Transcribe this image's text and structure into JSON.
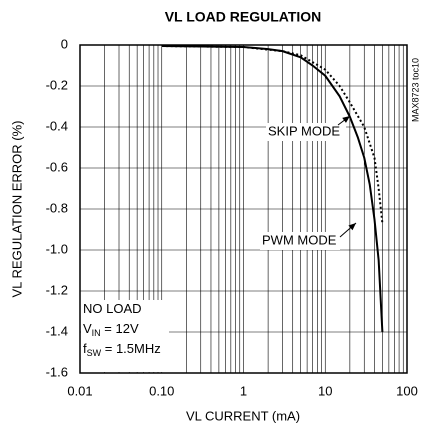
{
  "chart_data": {
    "type": "line",
    "title": "VL LOAD REGULATION",
    "x_label": "VL CURRENT (mA)",
    "y_label": "VL REGULATION ERROR (%)",
    "side_note": "MAX8723 toc10",
    "log_x": true,
    "grid": true,
    "xlim": [
      0.01,
      100
    ],
    "xticks": [
      0.01,
      {
        "value": 0.1,
        "label": "0.10"
      },
      1,
      10,
      100
    ],
    "ylim": [
      -1.6,
      0
    ],
    "yticks": [
      0,
      -0.2,
      -0.4,
      -0.6,
      -0.8,
      {
        "value": -1,
        "label": "-1.0"
      },
      -1.2,
      -1.4,
      -1.6
    ],
    "series": [
      {
        "name": "SKIP MODE",
        "color": "#000000",
        "line_style": "solid",
        "x": [
          0.1,
          1,
          2,
          3,
          5,
          7,
          10,
          15,
          20,
          25,
          30,
          35,
          40,
          45,
          50
        ],
        "values": [
          -0.005,
          -0.01,
          -0.02,
          -0.03,
          -0.06,
          -0.1,
          -0.15,
          -0.25,
          -0.35,
          -0.45,
          -0.55,
          -0.68,
          -0.85,
          -1.05,
          -1.4
        ]
      },
      {
        "name": "PWM MODE",
        "color": "#000000",
        "line_style": "dotted",
        "x": [
          0.1,
          1,
          3,
          5,
          10,
          15,
          20,
          30,
          40,
          45,
          50
        ],
        "values": [
          -0.005,
          -0.01,
          -0.03,
          -0.05,
          -0.12,
          -0.2,
          -0.28,
          -0.4,
          -0.55,
          -0.7,
          -0.87
        ]
      }
    ],
    "conditions": [
      {
        "text": "NO LOAD"
      },
      {
        "text": "V",
        "sub": "IN",
        "rest": " = 12V"
      },
      {
        "text": "f",
        "sub": "SW",
        "rest": " = 1.5MHz"
      }
    ]
  }
}
